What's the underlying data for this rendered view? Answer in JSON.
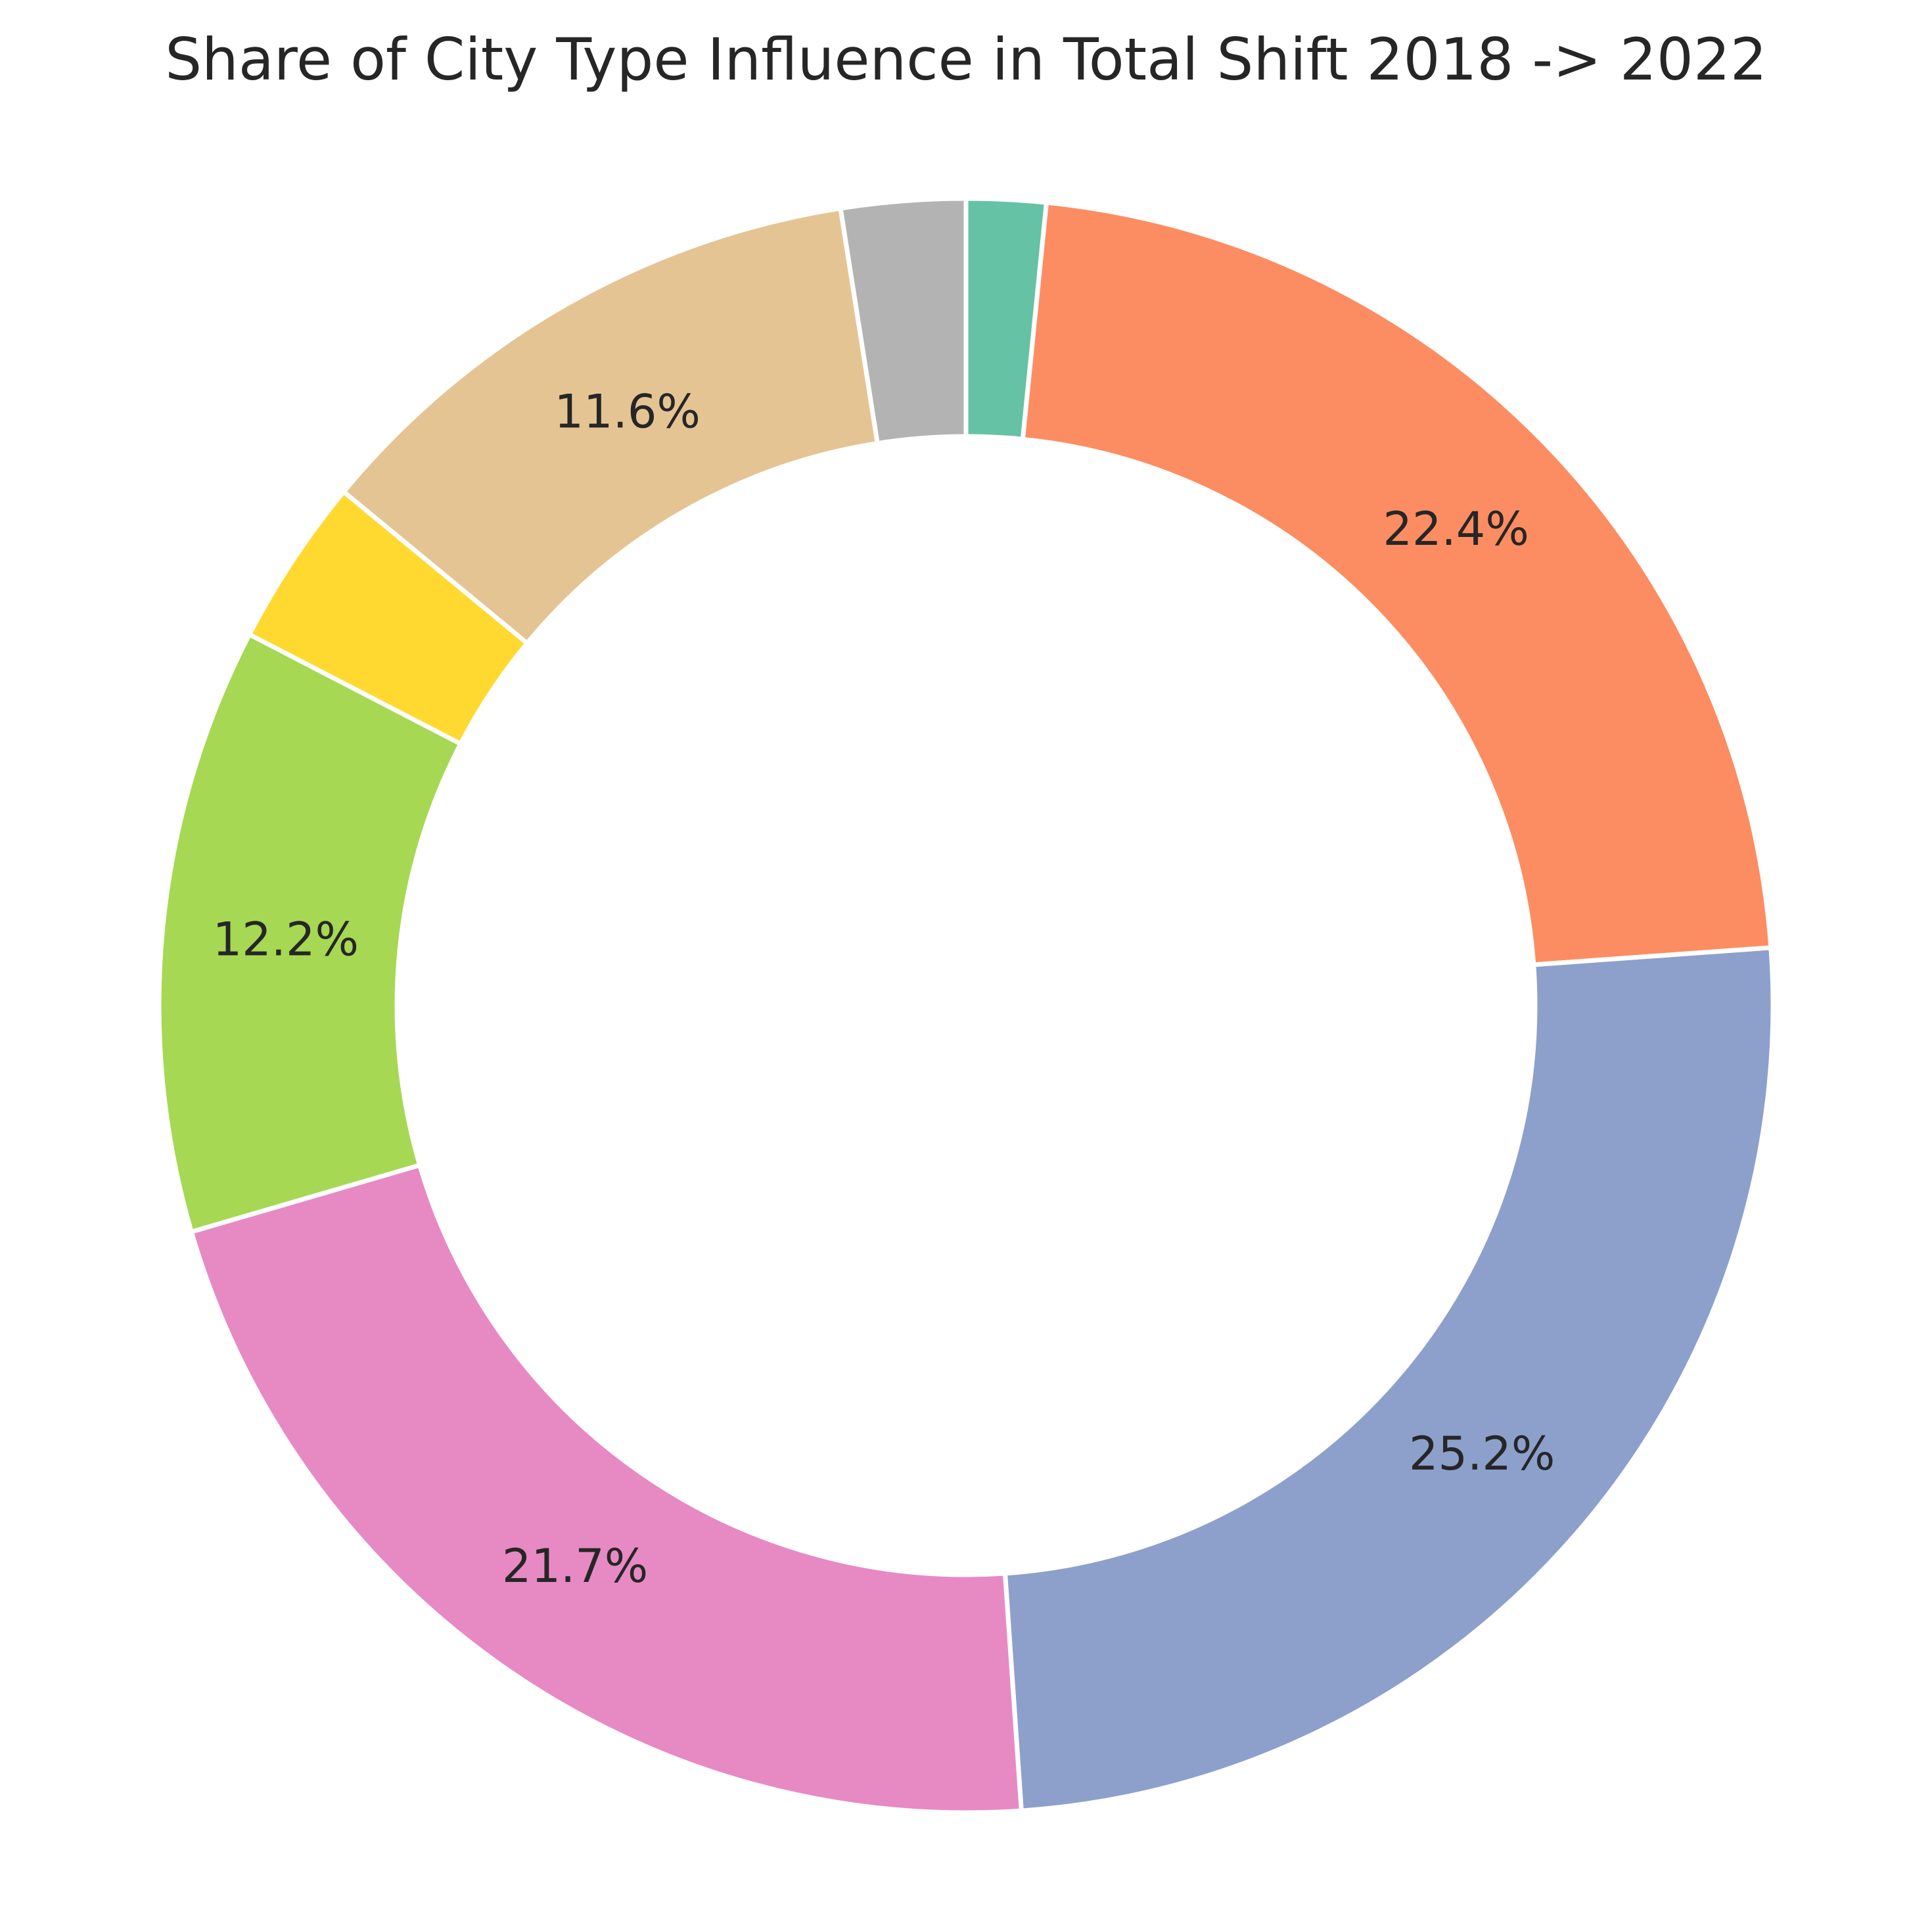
{
  "chart_data": {
    "type": "pie",
    "style": "donut",
    "title": "Share of City Type Influence in Total Shift 2018 -> 2022",
    "start": "top",
    "direction": "clockwise",
    "legend": "none",
    "slices": [
      {
        "value": 1.6,
        "label": "",
        "color": "#66c2a5"
      },
      {
        "value": 22.4,
        "label": "22.4%",
        "color": "#fc8d62"
      },
      {
        "value": 25.2,
        "label": "25.2%",
        "color": "#8da0cb"
      },
      {
        "value": 21.7,
        "label": "21.7%",
        "color": "#e78ac3"
      },
      {
        "value": 12.2,
        "label": "12.2%",
        "color": "#a6d854"
      },
      {
        "value": 3.4,
        "label": "",
        "color": "#ffd92f"
      },
      {
        "value": 11.6,
        "label": "11.6%",
        "color": "#e5c494"
      },
      {
        "value": 2.5,
        "label": "",
        "color": "#b3b3b3"
      }
    ]
  }
}
